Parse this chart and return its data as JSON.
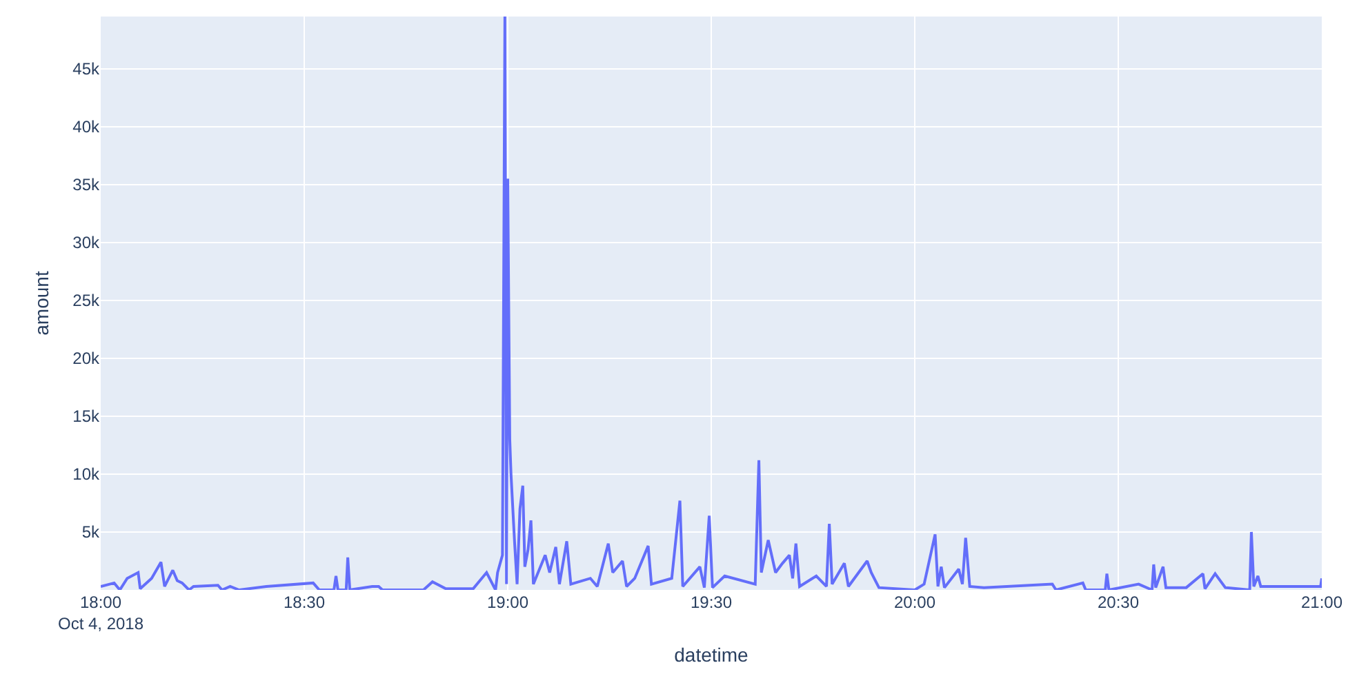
{
  "chart_data": {
    "type": "line",
    "xlabel": "datetime",
    "ylabel": "amount",
    "grid": true,
    "marker": "none",
    "line_style": "solid",
    "xlim": [
      18,
      21
    ],
    "ylim": [
      0,
      49500
    ],
    "xticks": [
      {
        "value": 18,
        "label": "18:00\nOct 4, 2018"
      },
      {
        "value": 18.5,
        "label": "18:30"
      },
      {
        "value": 19,
        "label": "19:00"
      },
      {
        "value": 19.5,
        "label": "19:30"
      },
      {
        "value": 20,
        "label": "20:00"
      },
      {
        "value": 20.5,
        "label": "20:30"
      },
      {
        "value": 21,
        "label": "21:00"
      }
    ],
    "yticks": [
      {
        "value": 5000,
        "label": "5k"
      },
      {
        "value": 10000,
        "label": "10k"
      },
      {
        "value": 15000,
        "label": "15k"
      },
      {
        "value": 20000,
        "label": "20k"
      },
      {
        "value": 25000,
        "label": "25k"
      },
      {
        "value": 30000,
        "label": "30k"
      },
      {
        "value": 35000,
        "label": "35k"
      },
      {
        "value": 40000,
        "label": "40k"
      },
      {
        "value": 45000,
        "label": "45k"
      }
    ],
    "series": [
      {
        "color": "#636efa",
        "x": [
          18.0,
          18.033,
          18.047,
          18.065,
          18.092,
          18.097,
          18.125,
          18.148,
          18.157,
          18.177,
          18.188,
          18.2,
          18.217,
          18.228,
          18.288,
          18.298,
          18.318,
          18.34,
          18.407,
          18.522,
          18.537,
          18.573,
          18.578,
          18.583,
          18.603,
          18.607,
          18.612,
          18.667,
          18.683,
          18.692,
          18.793,
          18.815,
          18.848,
          18.915,
          18.948,
          18.97,
          18.975,
          18.987,
          18.993,
          18.997,
          19.0,
          19.005,
          19.008,
          19.017,
          19.023,
          19.03,
          19.037,
          19.042,
          19.05,
          19.057,
          19.063,
          19.092,
          19.103,
          19.118,
          19.127,
          19.145,
          19.155,
          19.203,
          19.22,
          19.247,
          19.258,
          19.282,
          19.292,
          19.312,
          19.345,
          19.353,
          19.403,
          19.423,
          19.43,
          19.472,
          19.483,
          19.495,
          19.503,
          19.533,
          19.608,
          19.617,
          19.623,
          19.64,
          19.658,
          19.675,
          19.692,
          19.7,
          19.708,
          19.717,
          19.758,
          19.783,
          19.79,
          19.797,
          19.827,
          19.837,
          19.883,
          19.893,
          19.912,
          20.0,
          20.023,
          20.05,
          20.057,
          20.065,
          20.073,
          20.108,
          20.117,
          20.125,
          20.135,
          20.17,
          20.338,
          20.347,
          20.413,
          20.42,
          20.468,
          20.472,
          20.477,
          20.55,
          20.583,
          20.587,
          20.592,
          20.61,
          20.617,
          20.667,
          20.708,
          20.713,
          20.738,
          20.763,
          20.823,
          20.827,
          20.833,
          20.843,
          20.85,
          20.948,
          20.997,
          21.0
        ],
        "values": [
          300,
          600,
          0,
          1000,
          1500,
          100,
          1000,
          2400,
          300,
          1700,
          800,
          600,
          0,
          300,
          400,
          0,
          300,
          0,
          300,
          600,
          0,
          0,
          1200,
          0,
          0,
          2800,
          0,
          300,
          300,
          0,
          0,
          700,
          100,
          100,
          1500,
          0,
          1500,
          3000,
          49500,
          500,
          35500,
          13000,
          10000,
          4000,
          500,
          7000,
          9000,
          2000,
          3500,
          6000,
          500,
          3000,
          1500,
          3700,
          500,
          4200,
          500,
          1000,
          300,
          4000,
          1500,
          2500,
          300,
          1000,
          3800,
          500,
          1000,
          7700,
          300,
          2000,
          200,
          6400,
          200,
          1200,
          500,
          11200,
          1500,
          4300,
          1500,
          2300,
          3000,
          1000,
          4000,
          300,
          1200,
          300,
          5700,
          500,
          2300,
          300,
          2500,
          1500,
          200,
          0,
          500,
          4800,
          300,
          2000,
          200,
          1800,
          500,
          4500,
          300,
          200,
          500,
          0,
          600,
          0,
          0,
          1400,
          0,
          500,
          0,
          2200,
          200,
          2000,
          200,
          200,
          1400,
          100,
          1400,
          200,
          0,
          5000,
          300,
          1200,
          300,
          300,
          300,
          1000
        ]
      }
    ]
  }
}
